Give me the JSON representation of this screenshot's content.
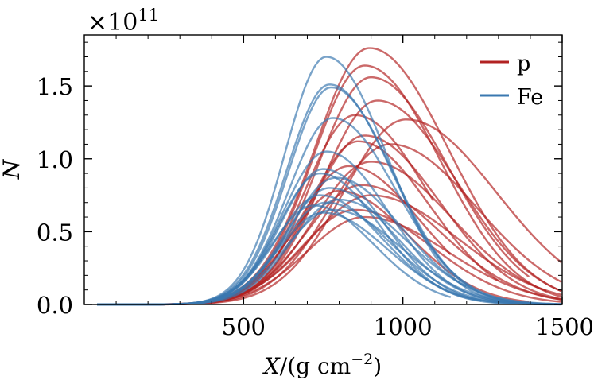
{
  "chart_data": {
    "type": "line",
    "title": "",
    "xlabel_var": "X",
    "xlabel_units": "/(g cm",
    "xlabel_exp": "−2",
    "xlabel_close": ")",
    "ylabel": "N",
    "y_multiplier_prefix": "×10",
    "y_multiplier_exp": "11",
    "xlim": [
      0,
      1500
    ],
    "ylim": [
      0,
      1.85
    ],
    "xticks": [
      500,
      1000,
      1500
    ],
    "xtick_labels": [
      "500",
      "1000",
      "1500"
    ],
    "yticks": [
      0.0,
      0.5,
      1.0,
      1.5
    ],
    "ytick_labels": [
      "0.0",
      "0.5",
      "1.0",
      "1.5"
    ],
    "grid": false,
    "legend_position": "top-right",
    "legend": [
      {
        "name": "p",
        "color": "#b22222"
      },
      {
        "name": "Fe",
        "color": "#3a78b0"
      }
    ],
    "series": [
      {
        "name": "p",
        "color": "#b22222",
        "showers": [
          {
            "xmax": 895,
            "nmax": 1.76,
            "width": 210,
            "xend": 1500
          },
          {
            "xmax": 880,
            "nmax": 1.64,
            "width": 200,
            "xend": 1500
          },
          {
            "xmax": 900,
            "nmax": 1.56,
            "width": 205,
            "xend": 1400
          },
          {
            "xmax": 920,
            "nmax": 1.4,
            "width": 210,
            "xend": 1500
          },
          {
            "xmax": 1010,
            "nmax": 1.27,
            "width": 240,
            "xend": 1500
          },
          {
            "xmax": 850,
            "nmax": 1.3,
            "width": 190,
            "xend": 1100
          },
          {
            "xmax": 880,
            "nmax": 1.16,
            "width": 200,
            "xend": 1500
          },
          {
            "xmax": 860,
            "nmax": 1.12,
            "width": 190,
            "xend": 1300
          },
          {
            "xmax": 960,
            "nmax": 1.1,
            "width": 230,
            "xend": 1500
          },
          {
            "xmax": 900,
            "nmax": 0.98,
            "width": 215,
            "xend": 1450
          },
          {
            "xmax": 830,
            "nmax": 0.95,
            "width": 190,
            "xend": 1150
          },
          {
            "xmax": 870,
            "nmax": 0.82,
            "width": 210,
            "xend": 1500
          },
          {
            "xmax": 800,
            "nmax": 0.78,
            "width": 185,
            "xend": 1400
          },
          {
            "xmax": 900,
            "nmax": 0.75,
            "width": 230,
            "xend": 1500
          },
          {
            "xmax": 850,
            "nmax": 0.65,
            "width": 205,
            "xend": 1500
          },
          {
            "xmax": 880,
            "nmax": 0.6,
            "width": 220,
            "xend": 1500
          }
        ]
      },
      {
        "name": "Fe",
        "color": "#3a78b0",
        "showers": [
          {
            "xmax": 760,
            "nmax": 1.7,
            "width": 160,
            "xend": 1500
          },
          {
            "xmax": 770,
            "nmax": 1.51,
            "width": 165,
            "xend": 1450
          },
          {
            "xmax": 775,
            "nmax": 1.49,
            "width": 165,
            "xend": 1500
          },
          {
            "xmax": 780,
            "nmax": 1.28,
            "width": 170,
            "xend": 1350
          },
          {
            "xmax": 760,
            "nmax": 1.05,
            "width": 165,
            "xend": 1500
          },
          {
            "xmax": 750,
            "nmax": 0.93,
            "width": 160,
            "xend": 1300
          },
          {
            "xmax": 740,
            "nmax": 0.9,
            "width": 158,
            "xend": 1500
          },
          {
            "xmax": 790,
            "nmax": 0.87,
            "width": 175,
            "xend": 1200
          },
          {
            "xmax": 770,
            "nmax": 0.8,
            "width": 170,
            "xend": 1500
          },
          {
            "xmax": 740,
            "nmax": 0.75,
            "width": 165,
            "xend": 1250
          },
          {
            "xmax": 800,
            "nmax": 0.72,
            "width": 180,
            "xend": 1500
          },
          {
            "xmax": 760,
            "nmax": 0.7,
            "width": 170,
            "xend": 1450
          },
          {
            "xmax": 720,
            "nmax": 0.68,
            "width": 160,
            "xend": 1150
          },
          {
            "xmax": 780,
            "nmax": 0.65,
            "width": 180,
            "xend": 1500
          },
          {
            "xmax": 750,
            "nmax": 0.63,
            "width": 170,
            "xend": 1500
          }
        ]
      }
    ]
  }
}
